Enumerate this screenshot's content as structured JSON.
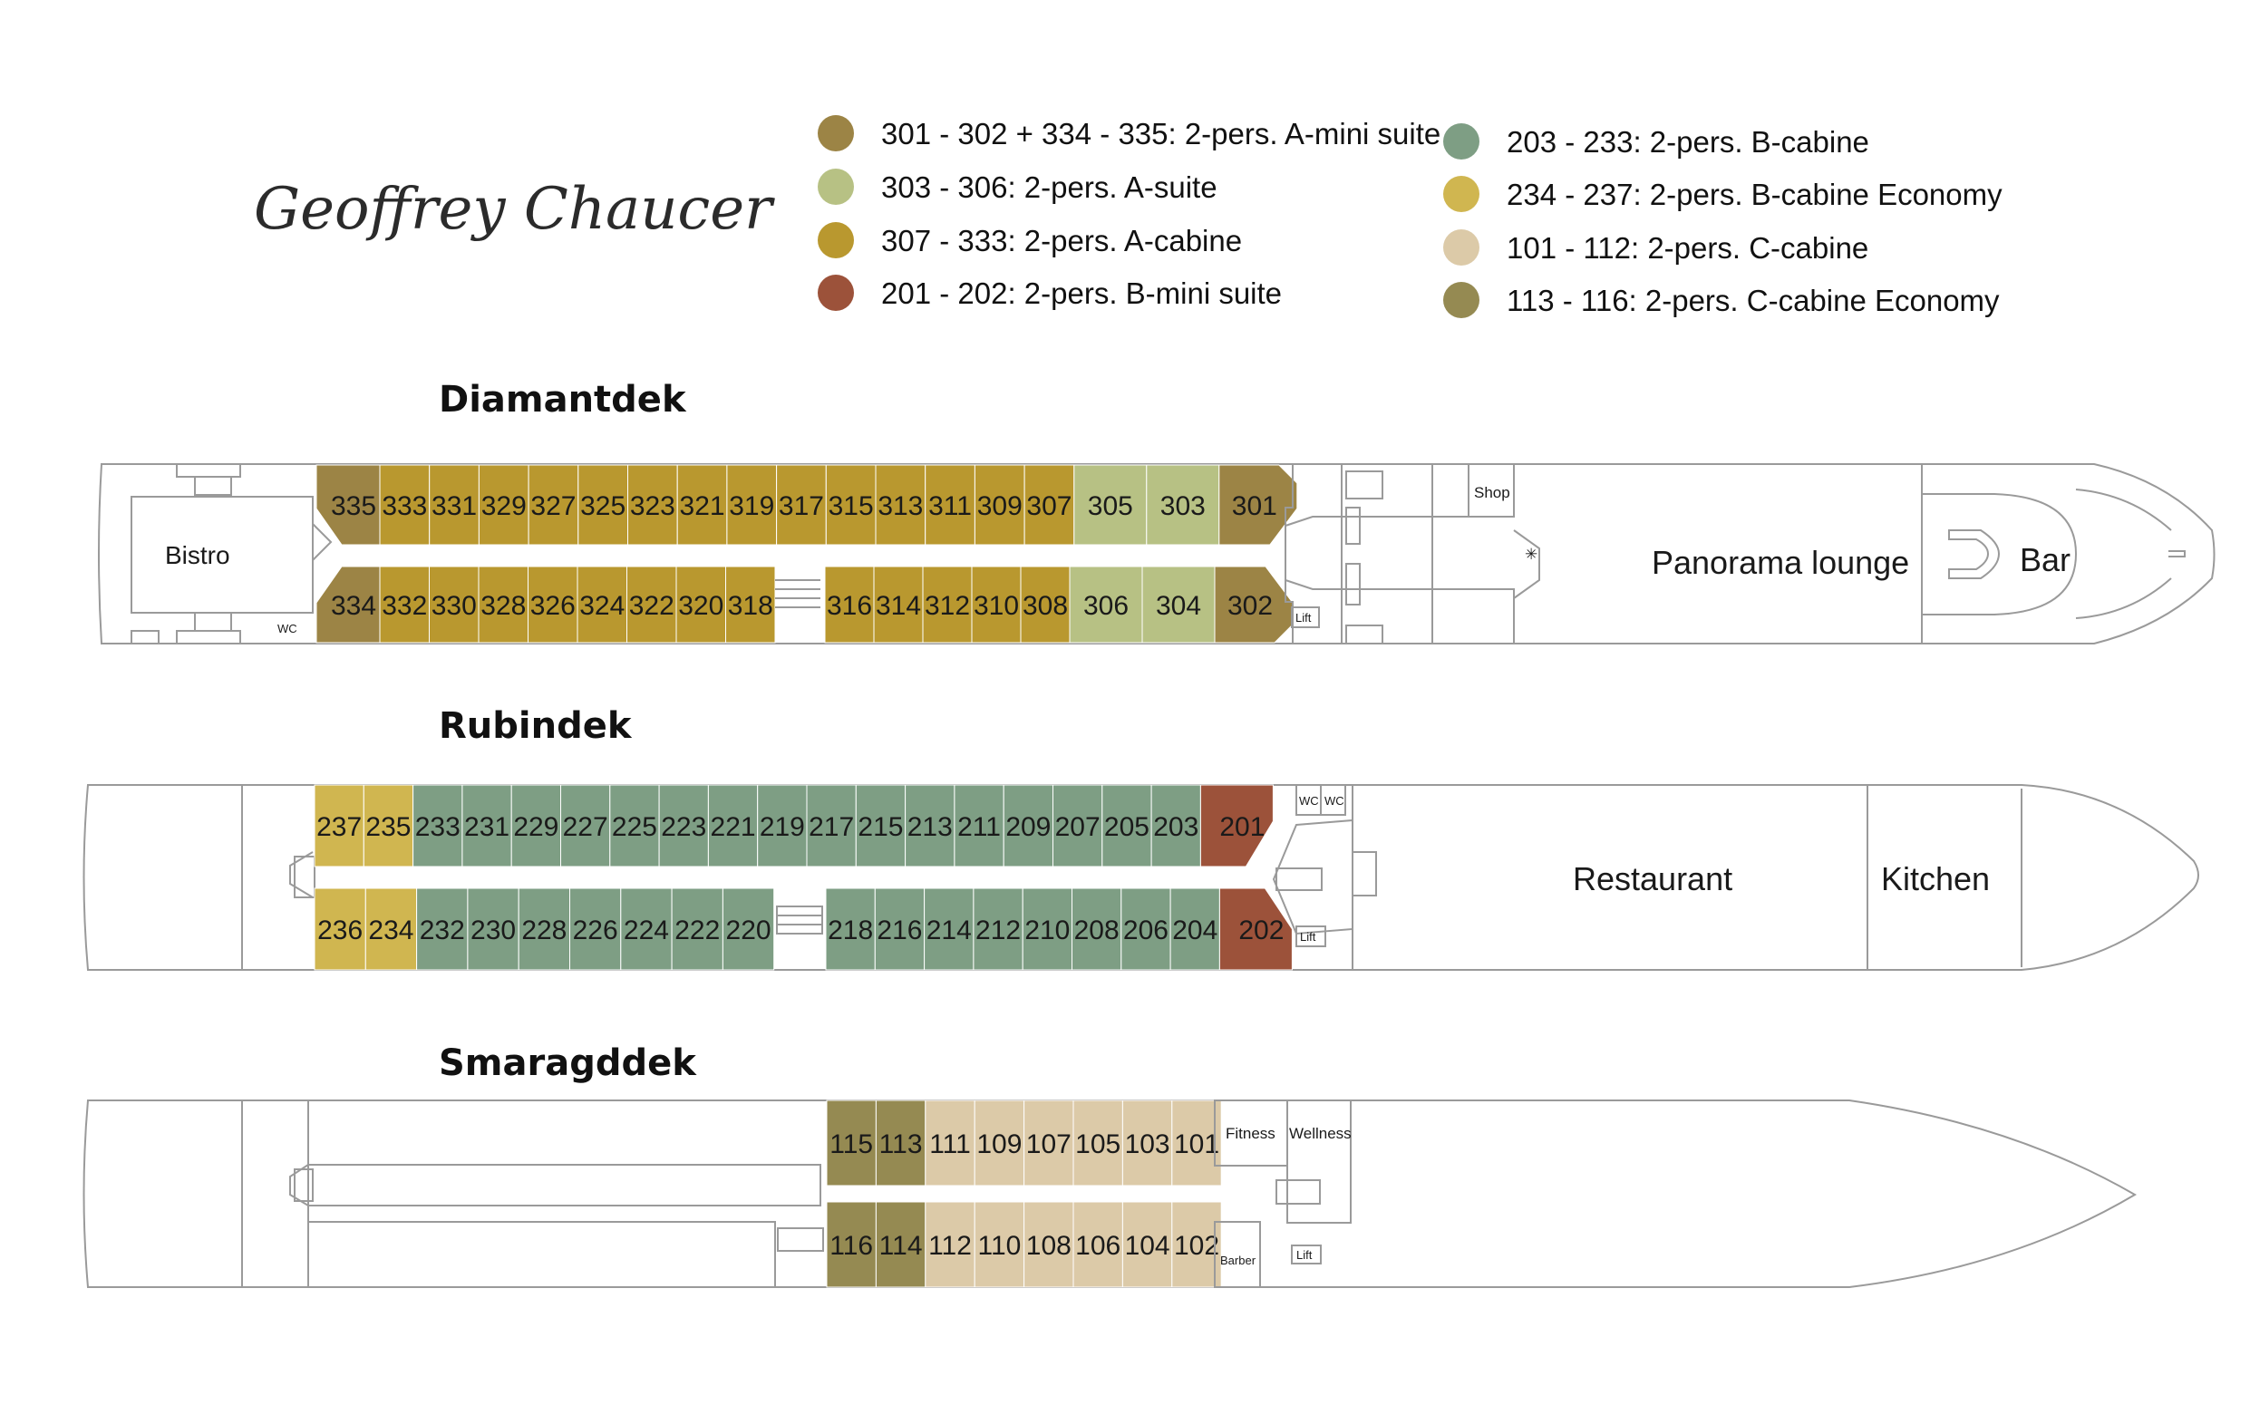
{
  "title": "Geoffrey Chaucer",
  "legend": {
    "left": [
      {
        "label": "301 - 302 + 334 - 335: 2-pers. A-mini suite",
        "color": "#9c8445"
      },
      {
        "label": "303 - 306: 2-pers. A-suite",
        "color": "#b7c184"
      },
      {
        "label": "307 - 333: 2-pers. A-cabine",
        "color": "#b9982f"
      },
      {
        "label": "201 - 202: 2-pers. B-mini suite",
        "color": "#9c523a"
      }
    ],
    "right": [
      {
        "label": "203 - 233: 2-pers. B-cabine",
        "color": "#7e9e84"
      },
      {
        "label": "234 - 237: 2-pers. B-cabine Economy",
        "color": "#d0b650"
      },
      {
        "label": "101 - 112: 2-pers. C-cabine",
        "color": "#dccaa8"
      },
      {
        "label": "113 - 116: 2-pers. C-cabine Economy",
        "color": "#958a52"
      }
    ]
  },
  "decks": {
    "diamant": {
      "name": "Diamantdek",
      "top_row": [
        "335",
        "333",
        "331",
        "329",
        "327",
        "325",
        "323",
        "321",
        "319",
        "317",
        "315",
        "313",
        "311",
        "309",
        "307",
        "305",
        "303",
        "301"
      ],
      "bottom_left": [
        "334",
        "332",
        "330",
        "328",
        "326",
        "324",
        "322",
        "320",
        "318"
      ],
      "bottom_right": [
        "316",
        "314",
        "312",
        "310",
        "308",
        "306",
        "304",
        "302"
      ],
      "rooms": {
        "bistro": "Bistro",
        "wc": "WC",
        "shop": "Shop",
        "lift": "Lift",
        "lounge": "Panorama lounge",
        "bar": "Bar"
      }
    },
    "rubin": {
      "name": "Rubindek",
      "top_row": [
        "237",
        "235",
        "233",
        "231",
        "229",
        "227",
        "225",
        "223",
        "221",
        "219",
        "217",
        "215",
        "213",
        "211",
        "209",
        "207",
        "205",
        "203",
        "201"
      ],
      "bottom_left": [
        "236",
        "234",
        "232",
        "230",
        "228",
        "226",
        "224",
        "222",
        "220"
      ],
      "bottom_right": [
        "218",
        "216",
        "214",
        "212",
        "210",
        "208",
        "206",
        "204",
        "202"
      ],
      "rooms": {
        "wc1": "WC",
        "wc2": "WC",
        "lift": "Lift",
        "restaurant": "Restaurant",
        "kitchen": "Kitchen"
      }
    },
    "smaragd": {
      "name": "Smaragddek",
      "top_row": [
        "115",
        "113",
        "111",
        "109",
        "107",
        "105",
        "103",
        "101"
      ],
      "bottom_row": [
        "116",
        "114",
        "112",
        "110",
        "108",
        "106",
        "104",
        "102"
      ],
      "rooms": {
        "fitness": "Fitness",
        "wellness": "Wellness",
        "barber": "Barber",
        "lift": "Lift"
      }
    }
  },
  "cabin_colors": {
    "A_mini": "#9c8445",
    "A_suite": "#b7c184",
    "A_cabine": "#b9982f",
    "B_mini": "#9c523a",
    "B_cabine": "#7e9e84",
    "B_economy": "#d0b650",
    "C_cabine": "#dccaa8",
    "C_economy": "#958a52"
  }
}
